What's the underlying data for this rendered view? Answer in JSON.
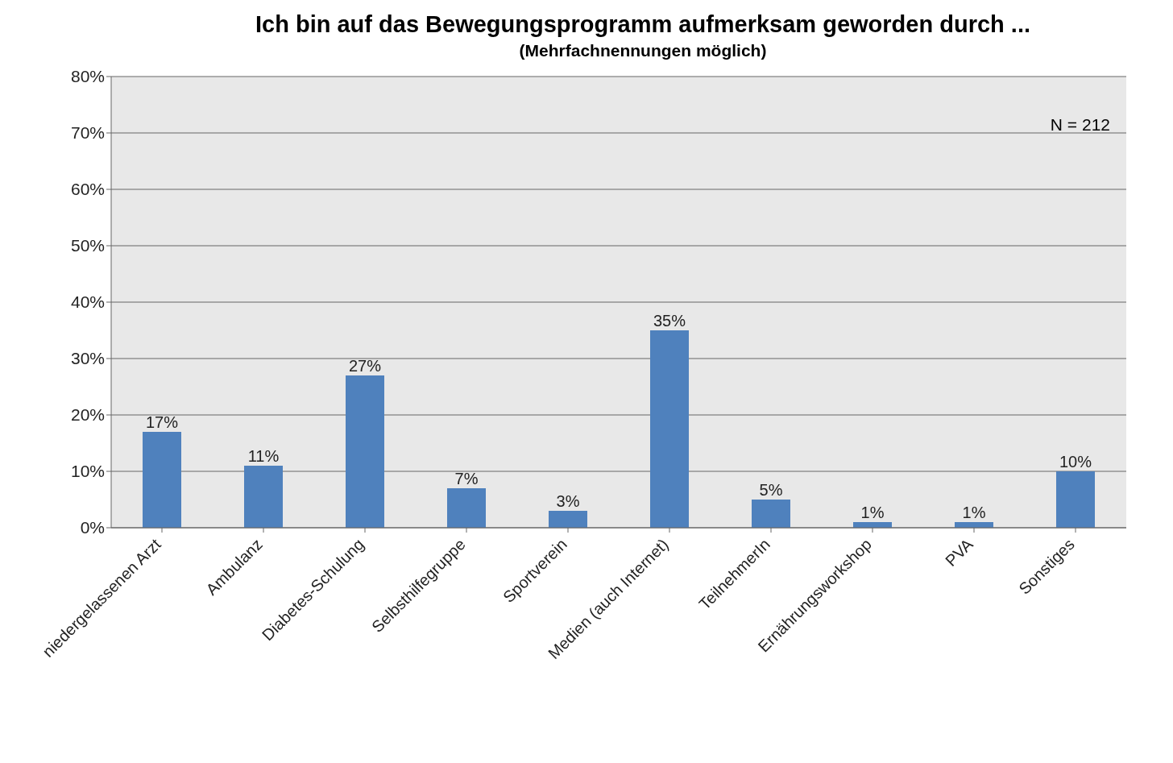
{
  "chart_data": {
    "type": "bar",
    "title": "Ich bin auf das Bewegungsprogramm aufmerksam geworden durch ...",
    "subtitle": "(Mehrfachnennungen möglich)",
    "annotations": [
      "N = 212"
    ],
    "categories": [
      "niedergelassenen Arzt",
      "Ambulanz",
      "Diabetes-Schulung",
      "Selbsthilfegruppe",
      "Sportverein",
      "Medien (auch Internet)",
      "TeilnehmerIn",
      "Ernährungsworkshop",
      "PVA",
      "Sonstiges"
    ],
    "values": [
      17,
      11,
      27,
      7,
      3,
      35,
      5,
      1,
      1,
      10
    ],
    "value_labels": [
      "17%",
      "11%",
      "27%",
      "7%",
      "3%",
      "35%",
      "5%",
      "1%",
      "1%",
      "10%"
    ],
    "color": "#4f81bd",
    "ylim": [
      0,
      80
    ],
    "yticks": [
      {
        "value": 0,
        "label": "0%"
      },
      {
        "value": 10,
        "label": "10%"
      },
      {
        "value": 20,
        "label": "20%"
      },
      {
        "value": 30,
        "label": "30%"
      },
      {
        "value": 40,
        "label": "40%"
      },
      {
        "value": 50,
        "label": "50%"
      },
      {
        "value": 60,
        "label": "60%"
      },
      {
        "value": 70,
        "label": "70%"
      },
      {
        "value": 80,
        "label": "80%"
      }
    ],
    "grid": "y",
    "legend": false
  }
}
